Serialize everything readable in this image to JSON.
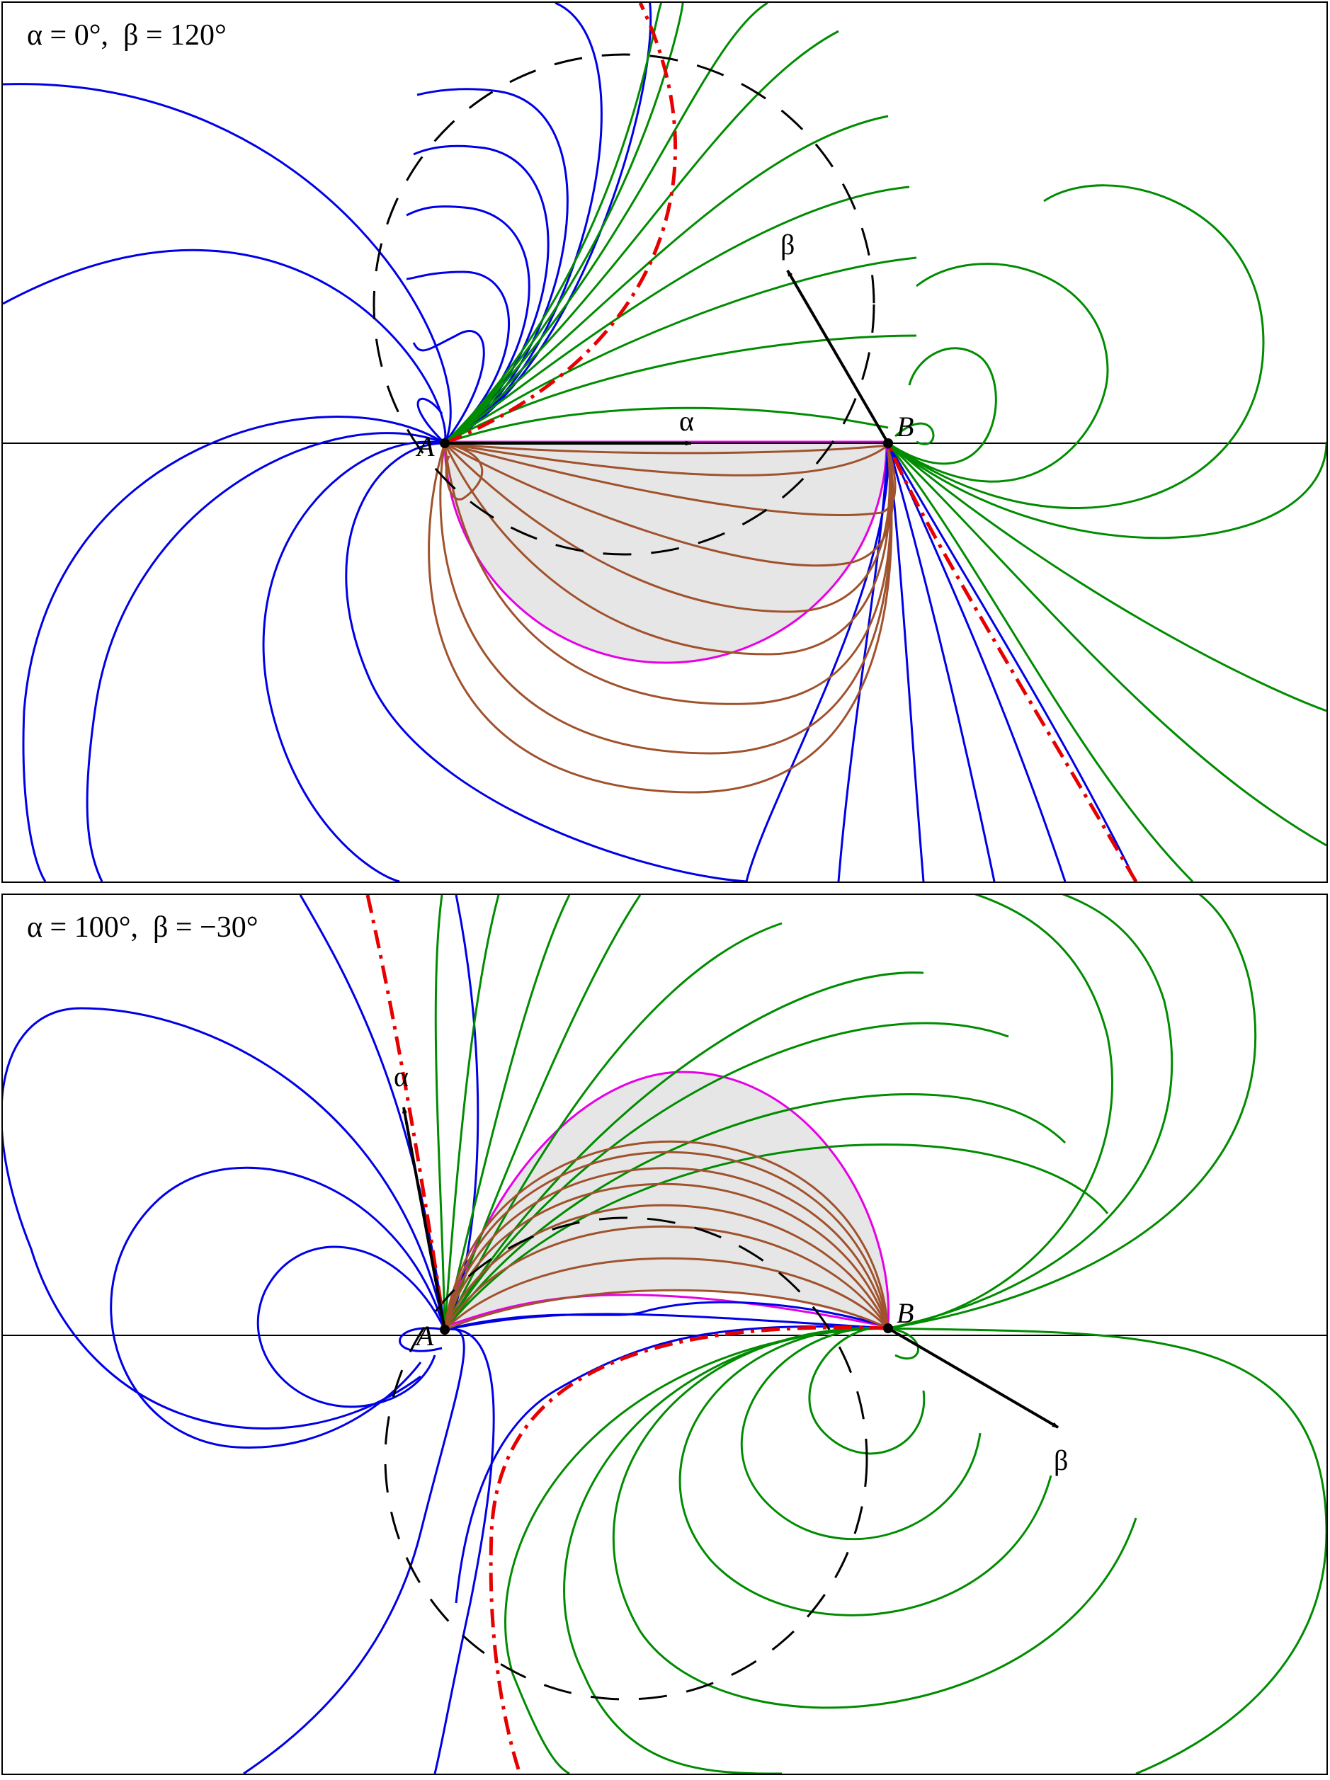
{
  "panels": [
    {
      "title": "α = 0°,  β = 120°",
      "alpha_deg": 0,
      "beta_deg": 120,
      "point_a_label": "A",
      "point_b_label": "B",
      "alpha_label": "α",
      "beta_label": "β"
    },
    {
      "title": "α = 100°,  β = −30°",
      "alpha_deg": 100,
      "beta_deg": -30,
      "point_a_label": "A",
      "point_b_label": "B",
      "alpha_label": "α",
      "beta_label": "β"
    }
  ],
  "colors": {
    "curve_a": "#0000e6",
    "curve_b": "#008c00",
    "curve_between": "#a0522d",
    "separatrix": "#e60000",
    "boundary": "#e600e6",
    "region_fill": "#e6e6e6",
    "dashed_circle": "#000000",
    "frame": "#000000"
  }
}
